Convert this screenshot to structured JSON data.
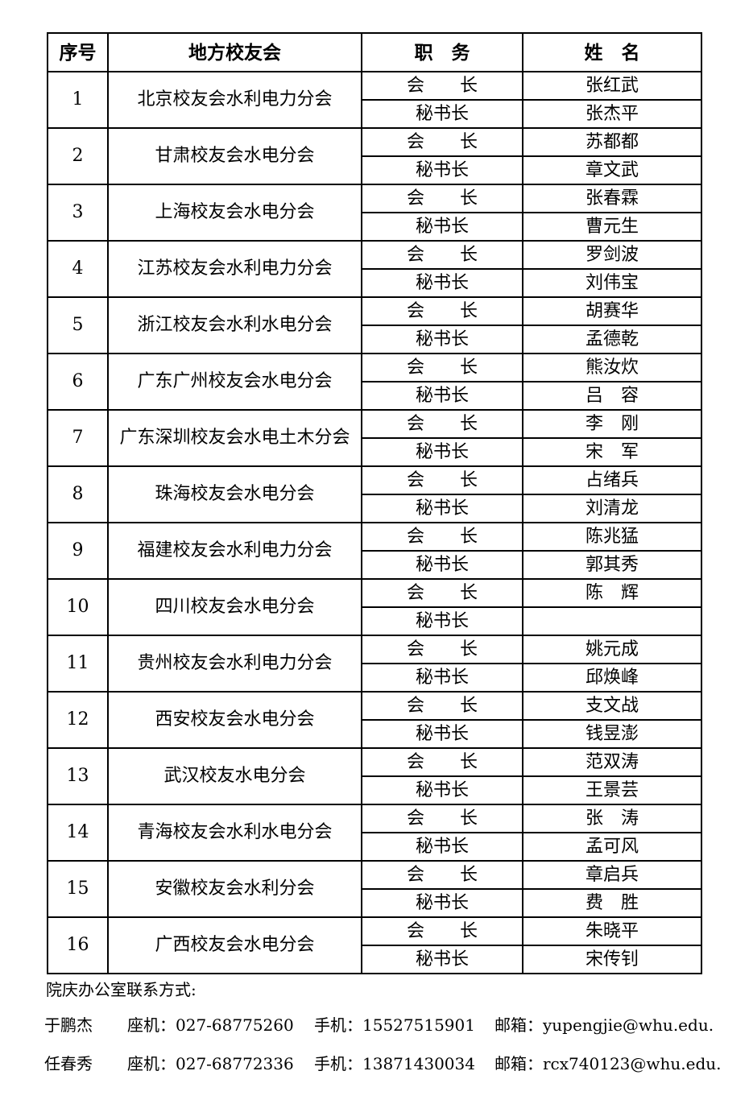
{
  "table": {
    "headers": {
      "index": "序号",
      "association": "地方校友会",
      "position": "职　务",
      "name": "姓　名"
    },
    "position_labels": {
      "president": "会　　长",
      "secretary": "秘书长"
    },
    "rows": [
      {
        "no": "1",
        "association": "北京校友会水利电力分会",
        "president": "张红武",
        "secretary": "张杰平"
      },
      {
        "no": "2",
        "association": "甘肃校友会水电分会",
        "president": "苏都都",
        "secretary": "章文武"
      },
      {
        "no": "3",
        "association": "上海校友会水电分会",
        "president": "张春霖",
        "secretary": "曹元生"
      },
      {
        "no": "4",
        "association": "江苏校友会水利电力分会",
        "president": "罗剑波",
        "secretary": "刘伟宝"
      },
      {
        "no": "5",
        "association": "浙江校友会水利水电分会",
        "president": "胡赛华",
        "secretary": "孟德乾"
      },
      {
        "no": "6",
        "association": "广东广州校友会水电分会",
        "president": "熊汝炊",
        "secretary": "吕　容"
      },
      {
        "no": "7",
        "association": "广东深圳校友会水电土木分会",
        "president": "李　刚",
        "secretary": "宋　军"
      },
      {
        "no": "8",
        "association": "珠海校友会水电分会",
        "president": "占绪兵",
        "secretary": "刘清龙"
      },
      {
        "no": "9",
        "association": "福建校友会水利电力分会",
        "president": "陈兆猛",
        "secretary": "郭其秀"
      },
      {
        "no": "10",
        "association": "四川校友会水电分会",
        "president": "陈　辉",
        "secretary": ""
      },
      {
        "no": "11",
        "association": "贵州校友会水利电力分会",
        "president": "姚元成",
        "secretary": "邱焕峰"
      },
      {
        "no": "12",
        "association": "西安校友会水电分会",
        "president": "支文战",
        "secretary": "钱昱澎"
      },
      {
        "no": "13",
        "association": "武汉校友水电分会",
        "president": "范双涛",
        "secretary": "王景芸"
      },
      {
        "no": "14",
        "association": "青海校友会水利水电分会",
        "president": "张　涛",
        "secretary": "孟可风"
      },
      {
        "no": "15",
        "association": "安徽校友会水利分会",
        "president": "章启兵",
        "secretary": "费　胜"
      },
      {
        "no": "16",
        "association": "广西校友会水电分会",
        "president": "朱晓平",
        "secretary": "宋传钊"
      }
    ]
  },
  "footer": {
    "title": "院庆办公室联系方式:",
    "contacts": [
      {
        "name": "于鹏杰",
        "landline_label": "座机：",
        "landline": "027-68775260",
        "mobile_label": "手机：",
        "mobile": "15527515901",
        "email_label": "邮箱：",
        "email": "yupengjie@whu.edu."
      },
      {
        "name": "任春秀",
        "landline_label": "座机：",
        "landline": "027-68772336",
        "mobile_label": "手机：",
        "mobile": "13871430034",
        "email_label": "邮箱：",
        "email": "rcx740123@whu.edu."
      }
    ]
  },
  "colors": {
    "text": "#000000",
    "border": "#000000",
    "background": "#ffffff"
  }
}
